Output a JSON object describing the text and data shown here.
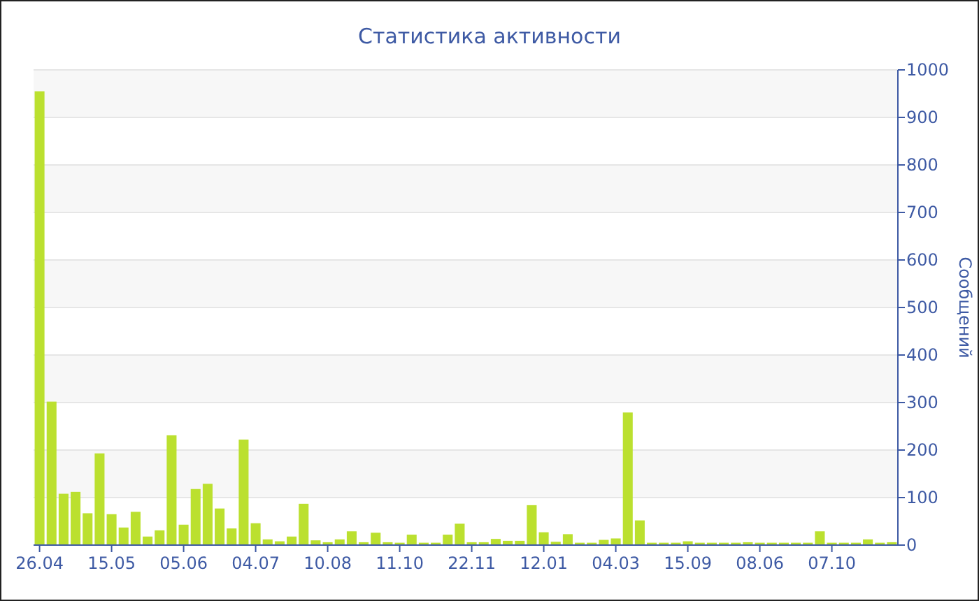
{
  "chart_data": {
    "type": "bar",
    "title": "Статистика активности",
    "ylabel": "Сообщений",
    "color": "#bbe02f",
    "categories": [
      "26.04",
      null,
      null,
      null,
      null,
      null,
      "15.05",
      null,
      null,
      null,
      null,
      null,
      "05.06",
      null,
      null,
      null,
      null,
      null,
      "04.07",
      null,
      null,
      null,
      null,
      null,
      "10.08",
      null,
      null,
      null,
      null,
      null,
      "11.10",
      null,
      null,
      null,
      null,
      null,
      "22.11",
      null,
      null,
      null,
      null,
      null,
      "12.01",
      null,
      null,
      null,
      null,
      null,
      "04.03",
      null,
      null,
      null,
      null,
      null,
      "15.09",
      null,
      null,
      null,
      null,
      null,
      "08.06",
      null,
      null,
      null,
      null,
      null,
      "07.10",
      null,
      null,
      null,
      null,
      null
    ],
    "values": [
      955,
      302,
      108,
      112,
      67,
      193,
      65,
      37,
      70,
      18,
      31,
      231,
      43,
      118,
      129,
      77,
      35,
      222,
      46,
      12,
      8,
      18,
      87,
      10,
      6,
      12,
      29,
      6,
      26,
      6,
      5,
      22,
      5,
      5,
      22,
      45,
      6,
      6,
      13,
      9,
      9,
      84,
      27,
      7,
      23,
      5,
      5,
      11,
      14,
      279,
      52,
      5,
      5,
      5,
      8,
      5,
      5,
      5,
      5,
      6,
      5,
      5,
      5,
      5,
      5,
      29,
      5,
      5,
      5,
      12,
      5,
      6
    ],
    "ylim": [
      0,
      1000
    ],
    "yticks": [
      0,
      100,
      200,
      300,
      400,
      500,
      600,
      700,
      800,
      900,
      1000
    ],
    "grid": "y"
  }
}
